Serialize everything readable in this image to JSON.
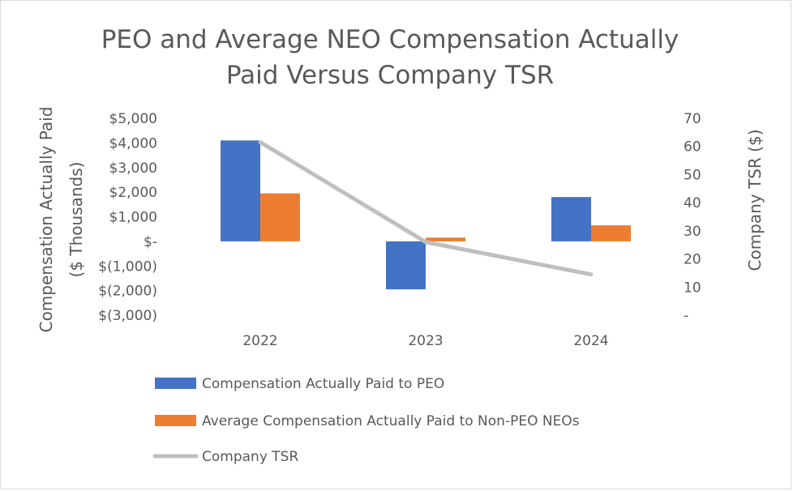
{
  "chart_data": {
    "type": "bar",
    "title_lines": [
      "PEO and Average NEO Compensation Actually",
      "Paid Versus Company TSR"
    ],
    "categories": [
      "2022",
      "2023",
      "2024"
    ],
    "series": [
      {
        "name": "Compensation Actually Paid to PEO",
        "kind": "bar",
        "axis": "left",
        "color": "#4472c4",
        "values": [
          4100,
          -1950,
          1800
        ]
      },
      {
        "name": "Average Compensation Actually Paid to Non-PEO NEOs",
        "kind": "bar",
        "axis": "left",
        "color": "#ed7d31",
        "values": [
          1950,
          150,
          650
        ]
      },
      {
        "name": "Company TSR",
        "kind": "line",
        "axis": "right",
        "color": "#bfbfbf",
        "values": [
          61.5,
          26,
          14.5
        ]
      }
    ],
    "ylabel_lines": [
      "Compensation Actually Paid",
      "($ Thousands)"
    ],
    "y2label": "Company TSR ($)",
    "ylim": [
      -3000,
      5000
    ],
    "y2lim": [
      0,
      70
    ],
    "y_tick_values": [
      5000,
      4000,
      3000,
      2000,
      1000,
      0,
      -1000,
      -2000,
      -3000
    ],
    "y_tick_labels": [
      "$5,000",
      "$4,000",
      "$3,000",
      "$2,000",
      "$1,000",
      "$-",
      "$(1,000)",
      "$(2,000)",
      "$(3,000)"
    ],
    "y2_tick_values": [
      70,
      60,
      50,
      40,
      30,
      20,
      10,
      0
    ],
    "y2_tick_labels": [
      "70",
      "60",
      "50",
      "40",
      "30",
      "20",
      "10",
      "-"
    ],
    "legend_position": "bottom",
    "grid": false
  }
}
